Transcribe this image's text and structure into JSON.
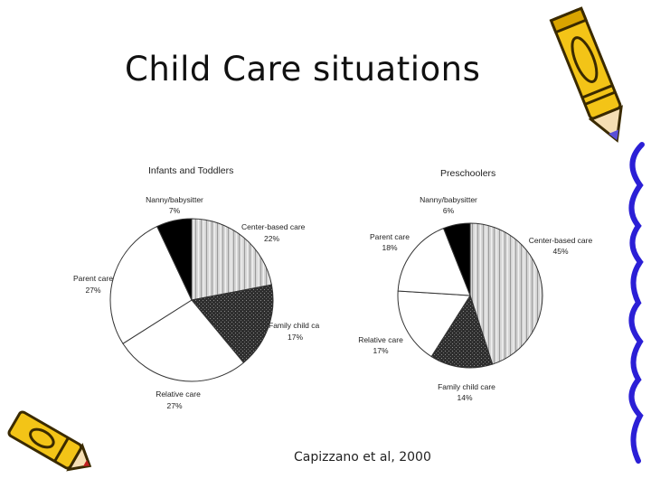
{
  "slide": {
    "title": "Child Care situations",
    "citation": "Capizzano et al, 2000"
  },
  "colors": {
    "center": "#d4d4d4",
    "family": "#3c3c3c",
    "relative": "#ffffff",
    "parent": "#ffffff",
    "nanny": "#000000",
    "pencil_body": "#f3c417",
    "pencil_outline": "#3a2a00",
    "squiggle": "#2b1fd6"
  },
  "chart_data": [
    {
      "type": "pie",
      "title": "Infants and Toddlers",
      "slices": [
        {
          "label": "Center-based care",
          "value": 22,
          "value_text": "22%"
        },
        {
          "label": "Family child ca",
          "value": 17,
          "value_text": "17%"
        },
        {
          "label": "Relative care",
          "value": 27,
          "value_text": "27%"
        },
        {
          "label": "Parent care",
          "value": 27,
          "value_text": "27%"
        },
        {
          "label": "Nanny/babysitter",
          "value": 7,
          "value_text": "7%"
        }
      ]
    },
    {
      "type": "pie",
      "title": "Preschoolers",
      "slices": [
        {
          "label": "Center-based care",
          "value": 45,
          "value_text": "45%"
        },
        {
          "label": "Family child care",
          "value": 14,
          "value_text": "14%"
        },
        {
          "label": "Relative care",
          "value": 17,
          "value_text": "17%"
        },
        {
          "label": "Parent care",
          "value": 18,
          "value_text": "18%"
        },
        {
          "label": "Nanny/babysitter",
          "value": 6,
          "value_text": "6%"
        }
      ]
    }
  ]
}
